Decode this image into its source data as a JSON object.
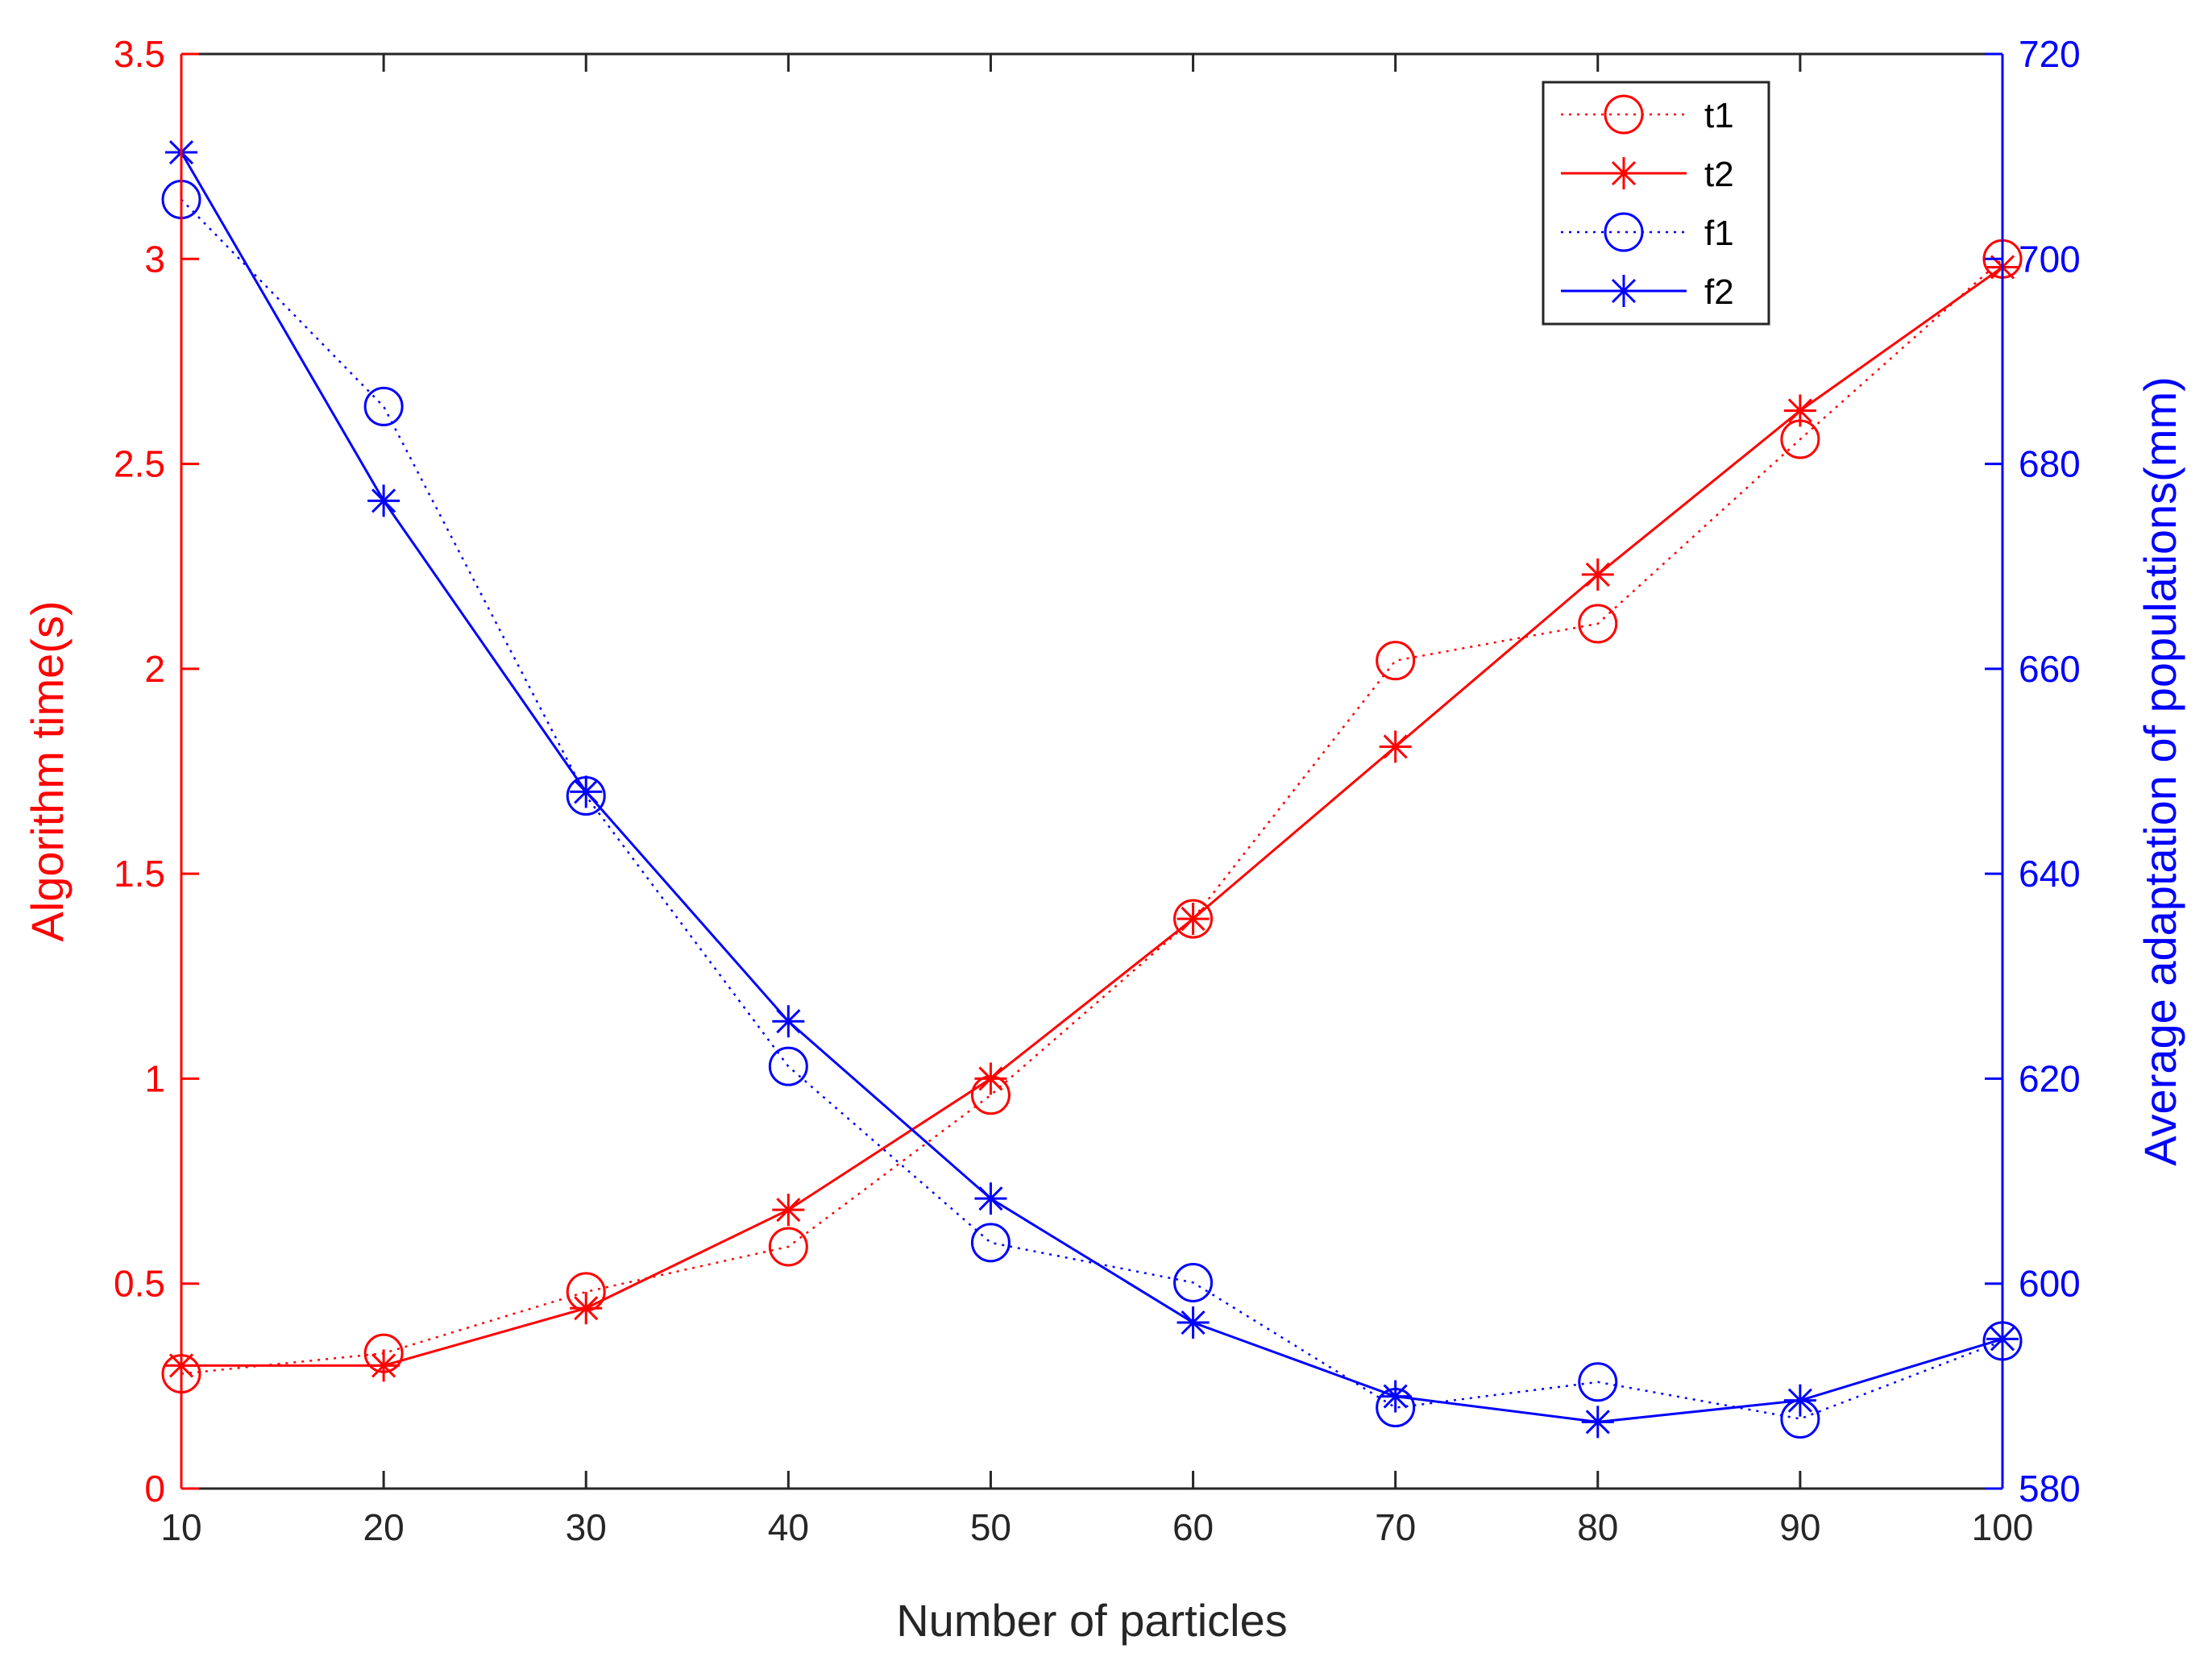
{
  "colors": {
    "left_axis": "#ff0000",
    "right_axis": "#0000ff",
    "x_axis": "#262626",
    "legend_border": "#262626"
  },
  "chart_data": {
    "type": "line",
    "title": "",
    "xlabel": "Number of particles",
    "ylabel_left": "Algorithm time(s)",
    "ylabel_right": "Average adaptation of populations(mm)",
    "xlim": [
      10,
      100
    ],
    "ylim_left": [
      0,
      3.5
    ],
    "ylim_right": [
      580,
      720
    ],
    "x_ticks": [
      "10",
      "20",
      "30",
      "40",
      "50",
      "60",
      "70",
      "80",
      "90",
      "100"
    ],
    "y_left_ticks": [
      "0",
      "0.5",
      "1",
      "1.5",
      "2",
      "2.5",
      "3",
      "3.5"
    ],
    "y_right_ticks": [
      "580",
      "600",
      "620",
      "640",
      "660",
      "680",
      "700",
      "720"
    ],
    "grid": false,
    "legend_position": "top-right",
    "x": [
      10,
      20,
      30,
      40,
      50,
      60,
      70,
      80,
      90,
      100
    ],
    "series": [
      {
        "name": "t1",
        "axis": "left",
        "color": "#ff0000",
        "line": "dotted",
        "marker": "circle",
        "values": [
          0.28,
          0.33,
          0.48,
          0.59,
          0.96,
          1.39,
          2.02,
          2.11,
          2.56,
          3.0
        ]
      },
      {
        "name": "t2",
        "axis": "left",
        "color": "#ff0000",
        "line": "solid",
        "marker": "star",
        "values": [
          0.3,
          0.3,
          0.44,
          0.68,
          1.0,
          1.39,
          1.81,
          2.23,
          2.63,
          2.98
        ]
      },
      {
        "name": "f1",
        "axis": "right",
        "color": "#0000ff",
        "line": "dotted",
        "marker": "circle",
        "values": [
          705.8,
          685.6,
          647.6,
          621.2,
          604.0,
          600.1,
          587.9,
          590.4,
          586.8,
          594.4
        ]
      },
      {
        "name": "f2",
        "axis": "right",
        "color": "#0000ff",
        "line": "solid",
        "marker": "star",
        "values": [
          710.4,
          676.4,
          648.0,
          625.6,
          608.3,
          596.2,
          589.0,
          586.5,
          588.6,
          594.6
        ]
      }
    ]
  }
}
